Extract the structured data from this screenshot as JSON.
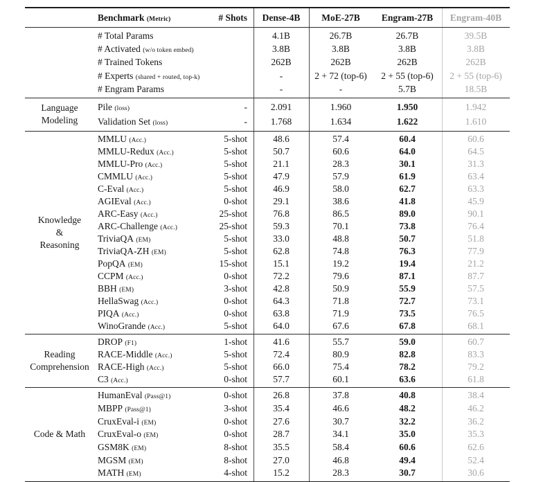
{
  "header": {
    "benchmark_label": "Benchmark",
    "benchmark_metric": "(Metric)",
    "shots_label": "# Shots",
    "columns": [
      "Dense-4B",
      "MoE-27B",
      "Engram-27B",
      "Engram-40B"
    ]
  },
  "colors": {
    "text": "#161616",
    "muted_column": "#a5a5a5",
    "rule": "#1b1b1b",
    "gray_vline": "#c9c9c9"
  },
  "sections": [
    {
      "id": "model-info",
      "group_lines": [],
      "engram_bold": false,
      "rows": [
        {
          "name": "# Total Params",
          "metric": "",
          "shots": "",
          "values": [
            "4.1B",
            "26.7B",
            "26.7B",
            "39.5B"
          ]
        },
        {
          "name": "# Activated",
          "metric": "(w/o token embed)",
          "shots": "",
          "values": [
            "3.8B",
            "3.8B",
            "3.8B",
            "3.8B"
          ]
        },
        {
          "name": "# Trained Tokens",
          "metric": "",
          "shots": "",
          "values": [
            "262B",
            "262B",
            "262B",
            "262B"
          ]
        },
        {
          "name": "# Experts",
          "metric": "(shared + routed, top-k)",
          "shots": "",
          "values": [
            "-",
            "2 + 72 (top-6)",
            "2 + 55 (top-6)",
            "2 + 55 (top-6)"
          ]
        },
        {
          "name": "# Engram Params",
          "metric": "",
          "shots": "",
          "values": [
            "-",
            "-",
            "5.7B",
            "18.5B"
          ]
        }
      ]
    },
    {
      "id": "language-modeling",
      "group_lines": [
        "Language",
        "Modeling"
      ],
      "engram_bold": true,
      "rows": [
        {
          "name": "Pile",
          "metric": "(loss)",
          "shots": "-",
          "values": [
            "2.091",
            "1.960",
            "1.950",
            "1.942"
          ]
        },
        {
          "name": "Validation Set",
          "metric": "(loss)",
          "shots": "-",
          "values": [
            "1.768",
            "1.634",
            "1.622",
            "1.610"
          ]
        }
      ]
    },
    {
      "id": "knowledge-reasoning",
      "group_lines": [
        "Knowledge",
        "&",
        "Reasoning"
      ],
      "engram_bold": true,
      "rows": [
        {
          "name": "MMLU",
          "metric": "(Acc.)",
          "shots": "5-shot",
          "values": [
            "48.6",
            "57.4",
            "60.4",
            "60.6"
          ]
        },
        {
          "name": "MMLU-Redux",
          "metric": "(Acc.)",
          "shots": "5-shot",
          "values": [
            "50.7",
            "60.6",
            "64.0",
            "64.5"
          ]
        },
        {
          "name": "MMLU-Pro",
          "metric": "(Acc.)",
          "shots": "5-shot",
          "values": [
            "21.1",
            "28.3",
            "30.1",
            "31.3"
          ]
        },
        {
          "name": "CMMLU",
          "metric": "(Acc.)",
          "shots": "5-shot",
          "values": [
            "47.9",
            "57.9",
            "61.9",
            "63.4"
          ]
        },
        {
          "name": "C-Eval",
          "metric": "(Acc.)",
          "shots": "5-shot",
          "values": [
            "46.9",
            "58.0",
            "62.7",
            "63.3"
          ]
        },
        {
          "name": "AGIEval",
          "metric": "(Acc.)",
          "shots": "0-shot",
          "values": [
            "29.1",
            "38.6",
            "41.8",
            "45.9"
          ]
        },
        {
          "name": "ARC-Easy",
          "metric": "(Acc.)",
          "shots": "25-shot",
          "values": [
            "76.8",
            "86.5",
            "89.0",
            "90.1"
          ]
        },
        {
          "name": "ARC-Challenge",
          "metric": "(Acc.)",
          "shots": "25-shot",
          "values": [
            "59.3",
            "70.1",
            "73.8",
            "76.4"
          ]
        },
        {
          "name": "TriviaQA",
          "metric": "(EM)",
          "shots": "5-shot",
          "values": [
            "33.0",
            "48.8",
            "50.7",
            "51.8"
          ]
        },
        {
          "name": "TriviaQA-ZH",
          "metric": "(EM)",
          "shots": "5-shot",
          "values": [
            "62.8",
            "74.8",
            "76.3",
            "77.9"
          ]
        },
        {
          "name": "PopQA",
          "metric": "(EM)",
          "shots": "15-shot",
          "values": [
            "15.1",
            "19.2",
            "19.4",
            "21.2"
          ]
        },
        {
          "name": "CCPM",
          "metric": "(Acc.)",
          "shots": "0-shot",
          "values": [
            "72.2",
            "79.6",
            "87.1",
            "87.7"
          ]
        },
        {
          "name": "BBH",
          "metric": "(EM)",
          "shots": "3-shot",
          "values": [
            "42.8",
            "50.9",
            "55.9",
            "57.5"
          ]
        },
        {
          "name": "HellaSwag",
          "metric": "(Acc.)",
          "shots": "0-shot",
          "values": [
            "64.3",
            "71.8",
            "72.7",
            "73.1"
          ]
        },
        {
          "name": "PIQA",
          "metric": "(Acc.)",
          "shots": "0-shot",
          "values": [
            "63.8",
            "71.9",
            "73.5",
            "76.5"
          ]
        },
        {
          "name": "WinoGrande",
          "metric": "(Acc.)",
          "shots": "5-shot",
          "values": [
            "64.0",
            "67.6",
            "67.8",
            "68.1"
          ]
        }
      ]
    },
    {
      "id": "reading-comprehension",
      "group_lines": [
        "Reading",
        "Comprehension"
      ],
      "engram_bold": true,
      "rows": [
        {
          "name": "DROP",
          "metric": "(F1)",
          "shots": "1-shot",
          "values": [
            "41.6",
            "55.7",
            "59.0",
            "60.7"
          ]
        },
        {
          "name": "RACE-Middle",
          "metric": "(Acc.)",
          "shots": "5-shot",
          "values": [
            "72.4",
            "80.9",
            "82.8",
            "83.3"
          ]
        },
        {
          "name": "RACE-High",
          "metric": "(Acc.)",
          "shots": "5-shot",
          "values": [
            "66.0",
            "75.4",
            "78.2",
            "79.2"
          ]
        },
        {
          "name": "C3",
          "metric": "(Acc.)",
          "shots": "0-shot",
          "values": [
            "57.7",
            "60.1",
            "63.6",
            "61.8"
          ]
        }
      ]
    },
    {
      "id": "code-math",
      "group_lines": [
        "Code & Math"
      ],
      "engram_bold": true,
      "rows": [
        {
          "name": "HumanEval",
          "metric": "(Pass@1)",
          "shots": "0-shot",
          "values": [
            "26.8",
            "37.8",
            "40.8",
            "38.4"
          ]
        },
        {
          "name": "MBPP",
          "metric": "(Pass@1)",
          "shots": "3-shot",
          "values": [
            "35.4",
            "46.6",
            "48.2",
            "46.2"
          ]
        },
        {
          "name": "CruxEval-i",
          "metric": "(EM)",
          "shots": "0-shot",
          "values": [
            "27.6",
            "30.7",
            "32.2",
            "36.2"
          ]
        },
        {
          "name": "CruxEval-o",
          "metric": "(EM)",
          "shots": "0-shot",
          "values": [
            "28.7",
            "34.1",
            "35.0",
            "35.3"
          ]
        },
        {
          "name": "GSM8K",
          "metric": "(EM)",
          "shots": "8-shot",
          "values": [
            "35.5",
            "58.4",
            "60.6",
            "62.6"
          ]
        },
        {
          "name": "MGSM",
          "metric": "(EM)",
          "shots": "8-shot",
          "values": [
            "27.0",
            "46.8",
            "49.4",
            "52.4"
          ]
        },
        {
          "name": "MATH",
          "metric": "(EM)",
          "shots": "4-shot",
          "values": [
            "15.2",
            "28.3",
            "30.7",
            "30.6"
          ]
        }
      ]
    }
  ]
}
